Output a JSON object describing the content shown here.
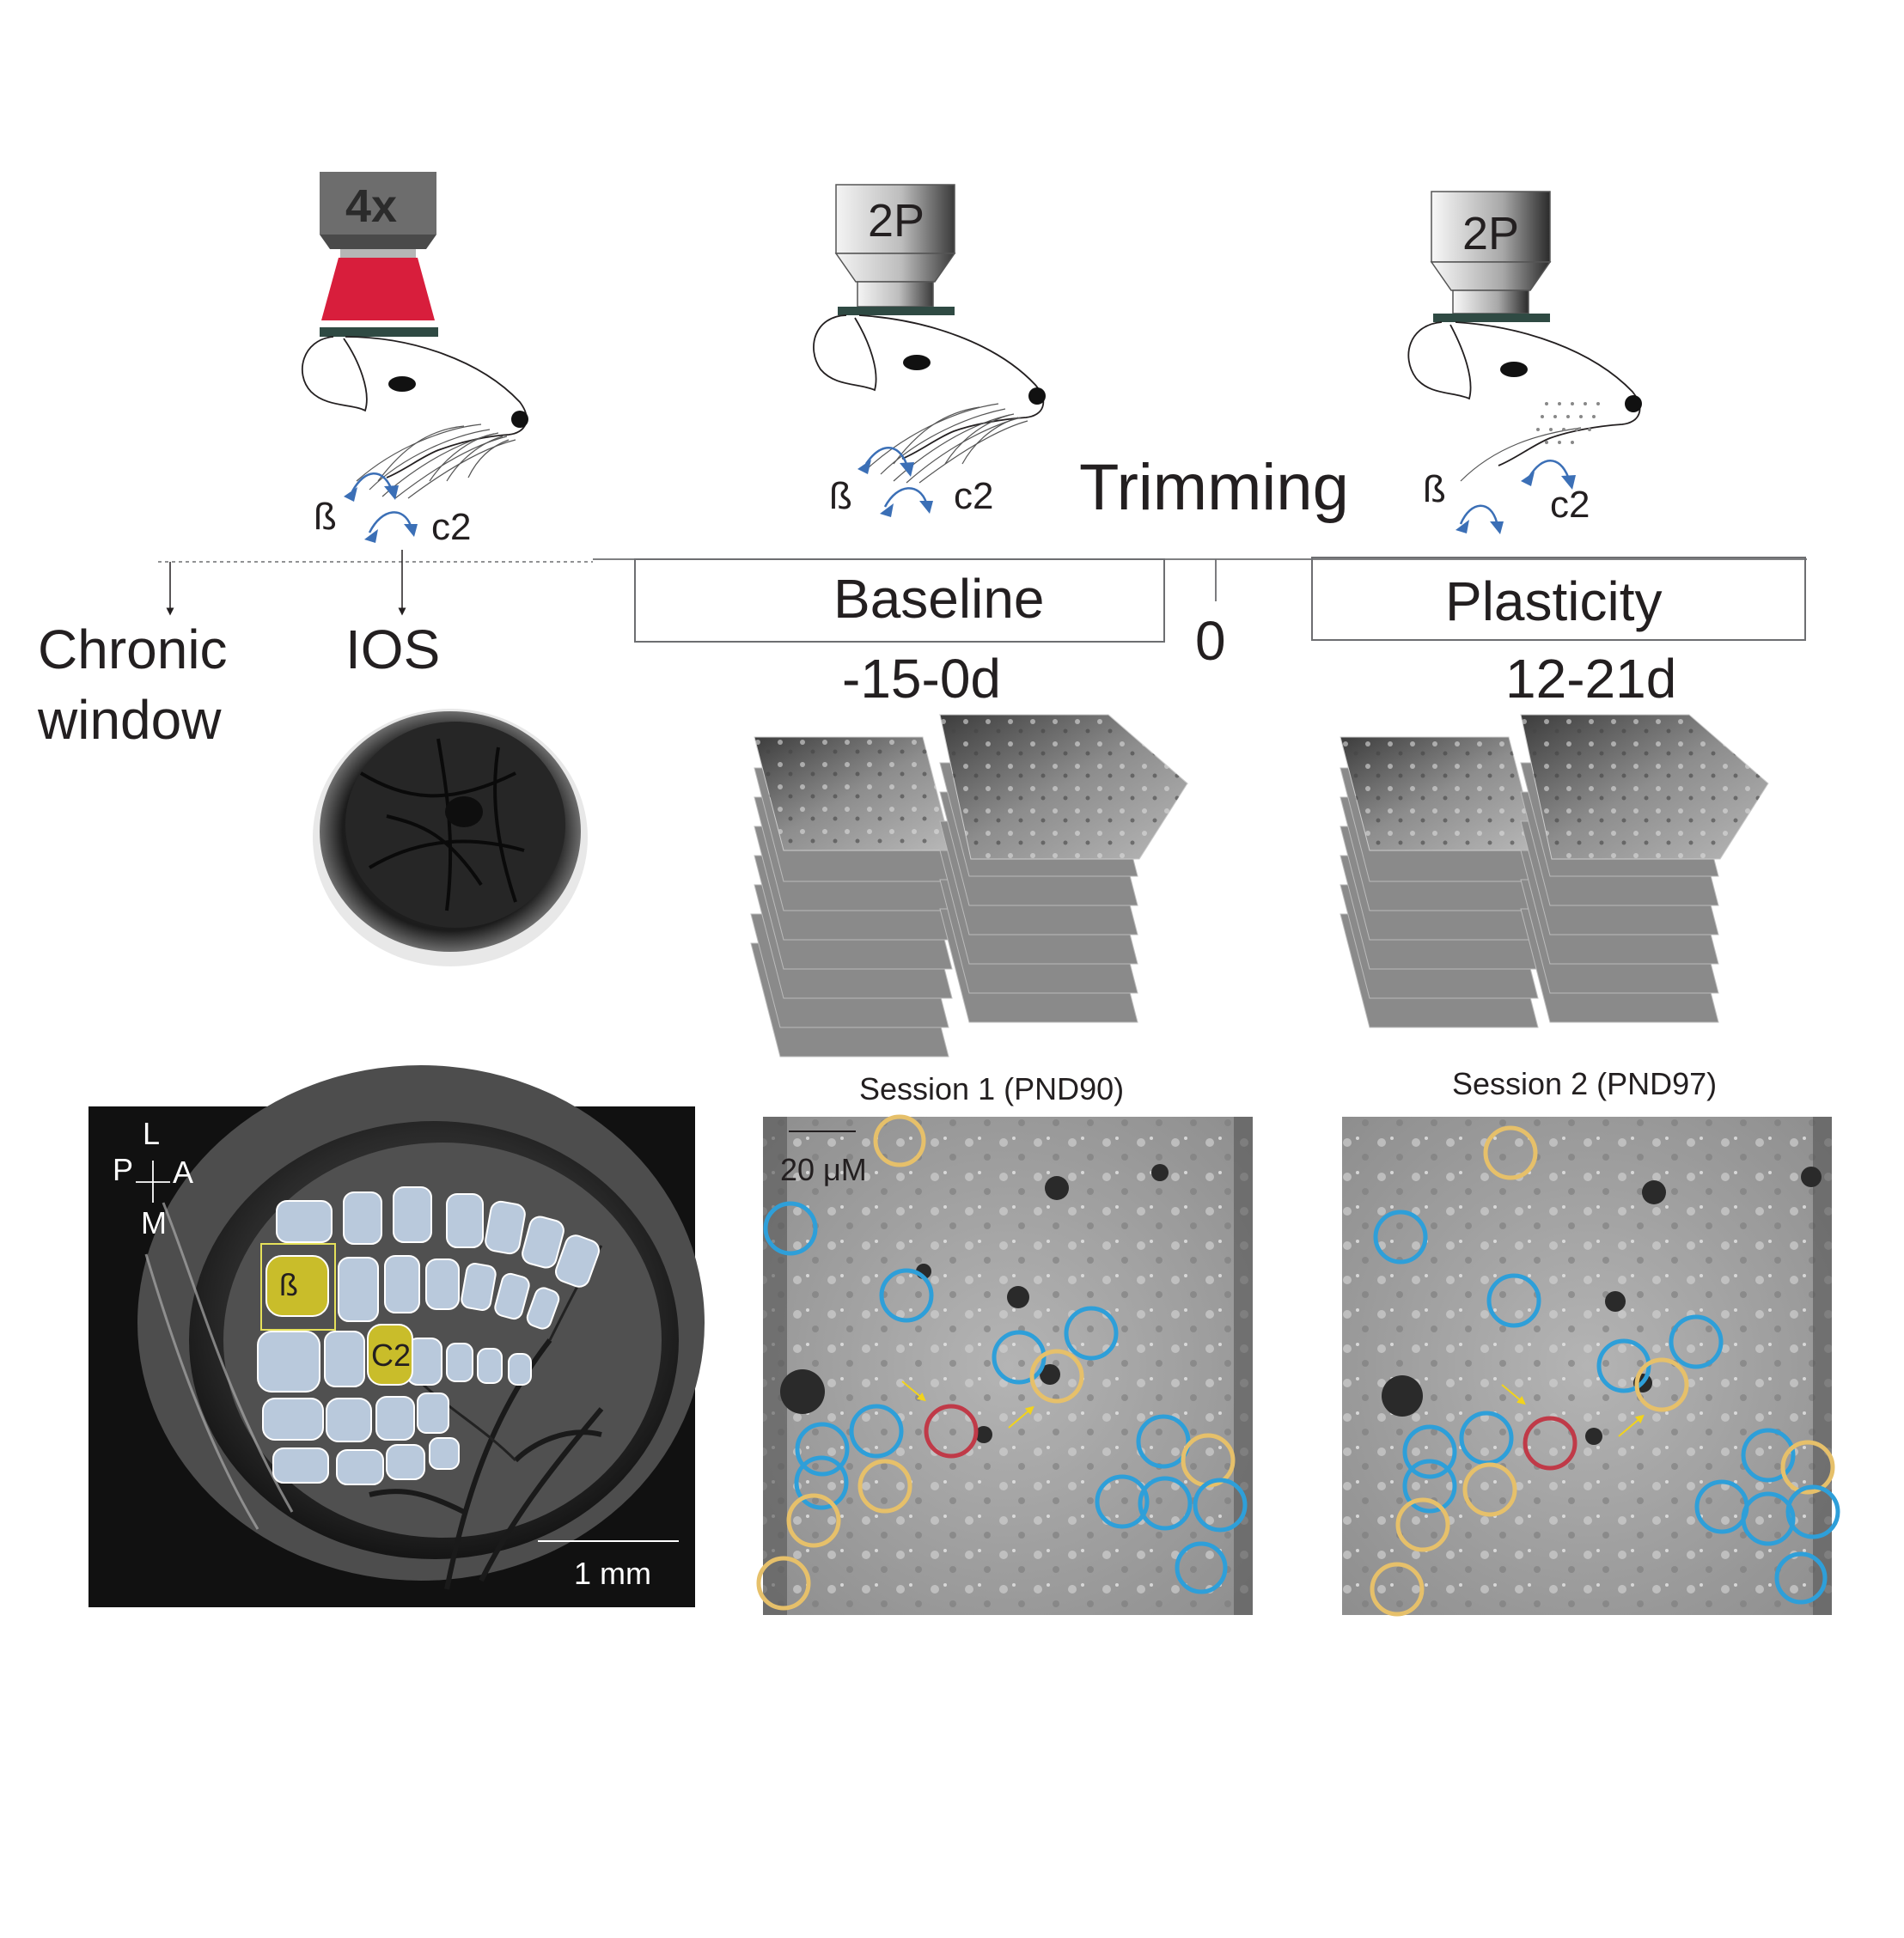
{
  "objectives": {
    "fourx": "4x",
    "twop_baseline": "2P",
    "twop_plasticity": "2P"
  },
  "whiskers": {
    "beta": "ß",
    "c2": "c2"
  },
  "timeline": {
    "chronic_window": [
      "Chronic",
      "window"
    ],
    "ios": "IOS",
    "baseline": "Baseline",
    "baseline_days": "-15-0d",
    "zero": "0",
    "trimming": "Trimming",
    "plasticity": "Plasticity",
    "plasticity_days": "12-21d"
  },
  "barrel_map": {
    "axis_L": "L",
    "axis_P": "P",
    "axis_A": "A",
    "axis_M": "M",
    "beta_label": "ß",
    "c2_label": "C2",
    "scalebar": "1 mm"
  },
  "sessions": {
    "session1": "Session 1 (PND90)",
    "session2": "Session 2 (PND97)",
    "scalebar": "20 μM"
  },
  "colors": {
    "laser": "#d81e3c",
    "arrow_blue": "#3b6fb6",
    "barrel_fill": "#b9c9dc",
    "highlight_barrel": "#c9bd2a",
    "circle_blue": "#2e9fd9",
    "circle_yellow": "#e6c06a",
    "circle_red": "#c03a48",
    "coverslip": "#2f4a43"
  }
}
